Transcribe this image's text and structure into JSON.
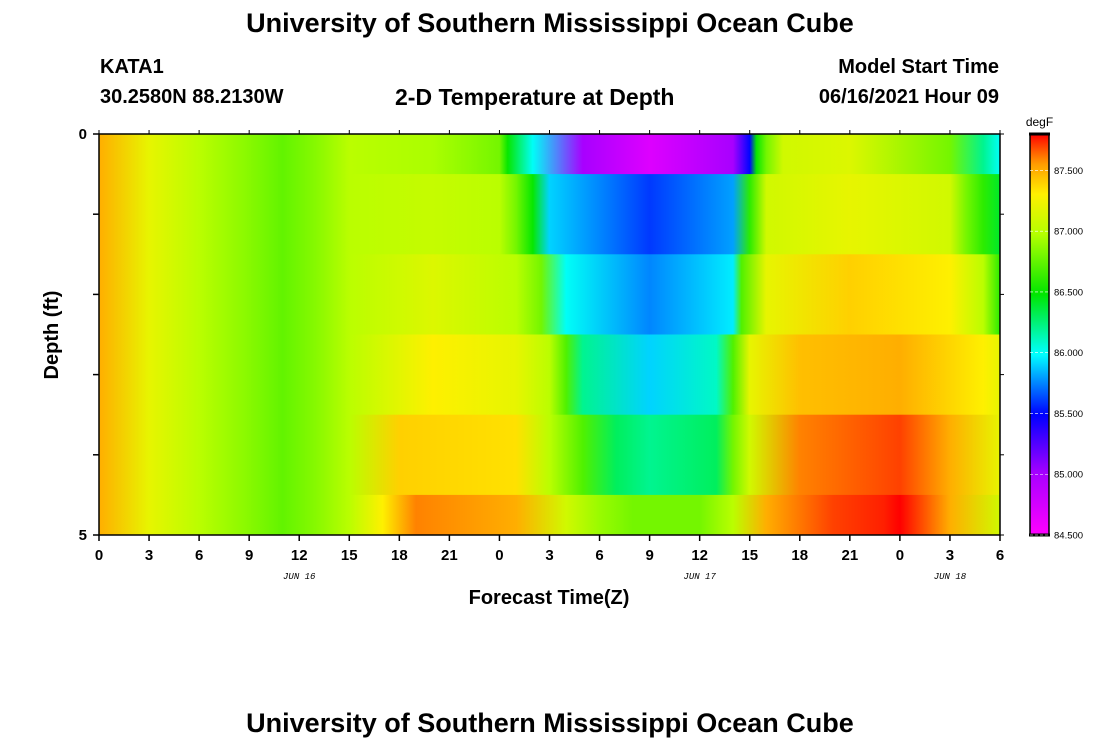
{
  "title": "University of Southern Mississippi Ocean Cube",
  "station": {
    "name": "KATA1",
    "coords": "30.2580N  88.2130W"
  },
  "subtitle": "2-D Temperature at Depth",
  "model_start": {
    "label": "Model Start Time",
    "value": "06/16/2021 Hour 09"
  },
  "footer_title": "University of Southern Mississippi Ocean Cube",
  "chart_data": {
    "type": "heatmap",
    "xlabel": "Forecast Time(Z)",
    "ylabel": "Depth (ft)",
    "ylim": [
      0,
      5
    ],
    "y_tick_labels": [
      "0",
      "5"
    ],
    "x_tick_hours": [
      0,
      3,
      6,
      9,
      12,
      15,
      18,
      21,
      24,
      27,
      30,
      33,
      36,
      39,
      42,
      45,
      48,
      51,
      54
    ],
    "x_tick_labels": [
      "0",
      "3",
      "6",
      "9",
      "12",
      "15",
      "18",
      "21",
      "0",
      "3",
      "6",
      "9",
      "12",
      "15",
      "18",
      "21",
      "0",
      "3",
      "6"
    ],
    "date_labels": [
      {
        "text": "JUN 16",
        "hour": 12
      },
      {
        "text": "JUN 17",
        "hour": 36
      },
      {
        "text": "JUN 18",
        "hour": 51
      }
    ],
    "colorbar": {
      "unit": "degF",
      "min": 84.5,
      "max": 87.8,
      "tick_values": [
        84.5,
        85.0,
        85.5,
        86.0,
        86.5,
        87.0,
        87.5
      ],
      "tick_labels": [
        "84.500",
        "85.000",
        "85.500",
        "86.000",
        "86.500",
        "87.000",
        "87.500"
      ]
    },
    "depth_bands": [
      {
        "depth_range": [
          0.0,
          0.5
        ],
        "series": [
          [
            0,
            87.5
          ],
          [
            3,
            87.2
          ],
          [
            6,
            87.0
          ],
          [
            9,
            86.85
          ],
          [
            11,
            86.75
          ],
          [
            13,
            86.85
          ],
          [
            15,
            87.0
          ],
          [
            20,
            86.95
          ],
          [
            24,
            86.8
          ],
          [
            24.5,
            86.5
          ],
          [
            26,
            86.0
          ],
          [
            29,
            85.0
          ],
          [
            33,
            84.7
          ],
          [
            38,
            85.0
          ],
          [
            39,
            85.5
          ],
          [
            39.4,
            86.5
          ],
          [
            40,
            86.8
          ],
          [
            41,
            87.1
          ],
          [
            45,
            87.15
          ],
          [
            51,
            86.8
          ],
          [
            53,
            86.2
          ],
          [
            54,
            86.0
          ]
        ]
      },
      {
        "depth_range": [
          0.5,
          1.5
        ],
        "series": [
          [
            0,
            87.5
          ],
          [
            3,
            87.2
          ],
          [
            6,
            87.0
          ],
          [
            9,
            86.85
          ],
          [
            11,
            86.75
          ],
          [
            13,
            86.85
          ],
          [
            15,
            87.0
          ],
          [
            20,
            87.05
          ],
          [
            24,
            87.0
          ],
          [
            25,
            86.8
          ],
          [
            26,
            86.5
          ],
          [
            27,
            85.9
          ],
          [
            33,
            85.6
          ],
          [
            38,
            85.8
          ],
          [
            39,
            86.6
          ],
          [
            40,
            87.1
          ],
          [
            45,
            87.2
          ],
          [
            51,
            87.1
          ],
          [
            52,
            86.8
          ],
          [
            53,
            86.6
          ],
          [
            54,
            86.4
          ]
        ]
      },
      {
        "depth_range": [
          1.5,
          2.5
        ],
        "series": [
          [
            0,
            87.5
          ],
          [
            3,
            87.2
          ],
          [
            6,
            87.0
          ],
          [
            9,
            86.85
          ],
          [
            11,
            86.75
          ],
          [
            13,
            86.85
          ],
          [
            15,
            87.0
          ],
          [
            20,
            87.15
          ],
          [
            25,
            87.0
          ],
          [
            26.5,
            86.8
          ],
          [
            28,
            86.0
          ],
          [
            33,
            85.75
          ],
          [
            38,
            85.95
          ],
          [
            38.5,
            86.7
          ],
          [
            40,
            87.2
          ],
          [
            45,
            87.4
          ],
          [
            51,
            87.3
          ],
          [
            53,
            87.0
          ],
          [
            54,
            86.6
          ]
        ]
      },
      {
        "depth_range": [
          2.5,
          3.5
        ],
        "series": [
          [
            0,
            87.5
          ],
          [
            3,
            87.2
          ],
          [
            6,
            87.0
          ],
          [
            9,
            86.85
          ],
          [
            11,
            86.75
          ],
          [
            13,
            86.85
          ],
          [
            15,
            87.0
          ],
          [
            20,
            87.3
          ],
          [
            25,
            87.2
          ],
          [
            27,
            87.0
          ],
          [
            28,
            86.7
          ],
          [
            29,
            86.2
          ],
          [
            33,
            85.9
          ],
          [
            37,
            86.1
          ],
          [
            38,
            86.7
          ],
          [
            39,
            87.2
          ],
          [
            42,
            87.45
          ],
          [
            48,
            87.5
          ],
          [
            53,
            87.3
          ],
          [
            54,
            87.2
          ]
        ]
      },
      {
        "depth_range": [
          3.5,
          4.5
        ],
        "series": [
          [
            0,
            87.5
          ],
          [
            3,
            87.2
          ],
          [
            6,
            87.0
          ],
          [
            9,
            86.85
          ],
          [
            11,
            86.75
          ],
          [
            13,
            86.85
          ],
          [
            15,
            87.0
          ],
          [
            18,
            87.4
          ],
          [
            25,
            87.35
          ],
          [
            27,
            87.0
          ],
          [
            29,
            86.7
          ],
          [
            31,
            86.3
          ],
          [
            33,
            86.2
          ],
          [
            37,
            86.3
          ],
          [
            38,
            86.8
          ],
          [
            39,
            87.1
          ],
          [
            42,
            87.6
          ],
          [
            48,
            87.7
          ],
          [
            51,
            87.5
          ],
          [
            54,
            87.2
          ]
        ]
      },
      {
        "depth_range": [
          4.5,
          5.0
        ],
        "series": [
          [
            0,
            87.5
          ],
          [
            3,
            87.2
          ],
          [
            6,
            87.0
          ],
          [
            9,
            86.85
          ],
          [
            11,
            86.75
          ],
          [
            13,
            86.85
          ],
          [
            15,
            87.0
          ],
          [
            17,
            87.3
          ],
          [
            19,
            87.6
          ],
          [
            25,
            87.5
          ],
          [
            28,
            87.1
          ],
          [
            30,
            86.9
          ],
          [
            32,
            86.8
          ],
          [
            36,
            86.8
          ],
          [
            38,
            87.0
          ],
          [
            40,
            87.5
          ],
          [
            44,
            87.7
          ],
          [
            47,
            87.75
          ],
          [
            48,
            87.8
          ],
          [
            51,
            87.5
          ],
          [
            54,
            87.1
          ]
        ]
      }
    ]
  }
}
